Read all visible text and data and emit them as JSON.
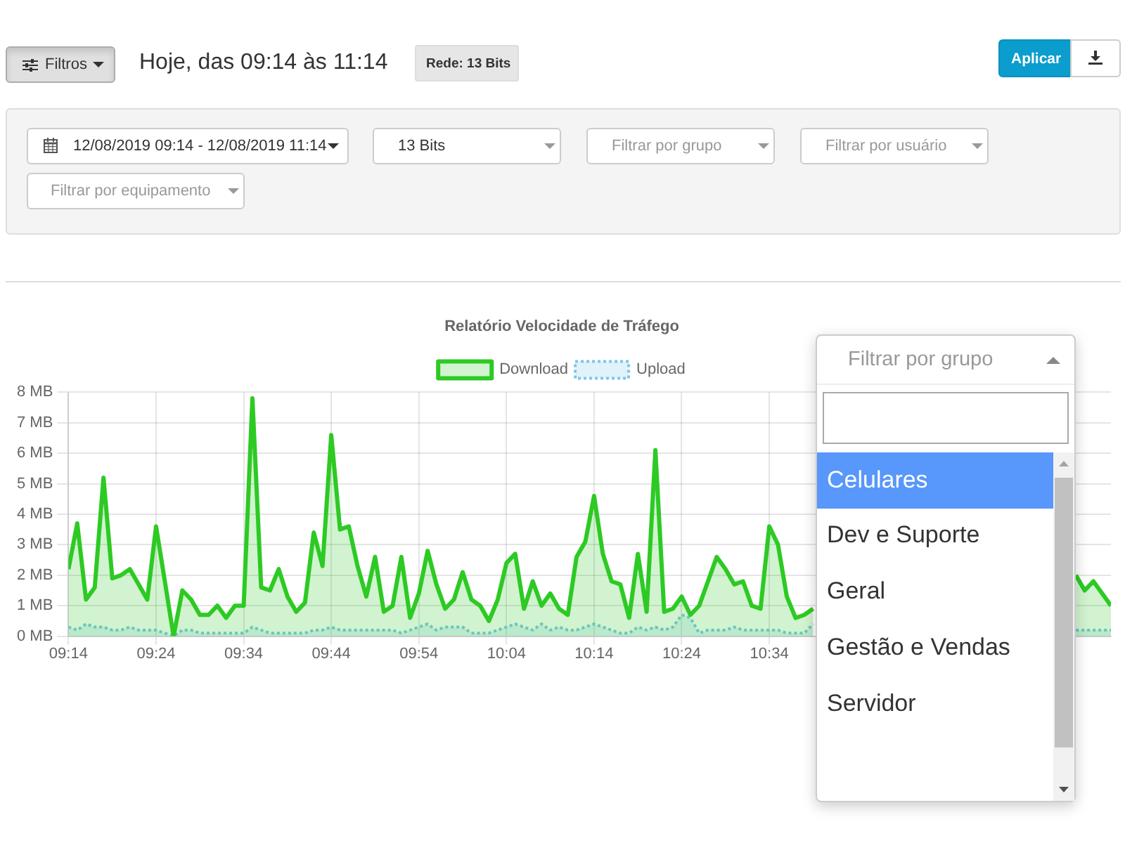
{
  "chart_data": [
    {
      "type": "other",
      "title": "Hoje, das 09:14 às 11:14",
      "annotations": [
        "Filtros",
        "Rede: 13 Bits",
        "Aplicar",
        "12/08/2019 09:14 - 12/08/2019 11:14",
        "13 Bits",
        "Filtrar por grupo",
        "Filtrar por usuário",
        "Filtrar por equipamento"
      ]
    },
    {
      "type": "area",
      "title": "Relatório Velocidade de Tráfego",
      "legend": "top",
      "grid": true,
      "x": [
        9.2333,
        9.25,
        9.2667,
        9.2833,
        9.3,
        9.3167,
        9.3333,
        9.35,
        9.3667,
        9.3833,
        9.4,
        9.4167,
        9.4333,
        9.45,
        9.4667,
        9.4833,
        9.5,
        9.5167,
        9.5333,
        9.55,
        9.5667,
        9.5833,
        9.6,
        9.6167,
        9.6333,
        9.65,
        9.6667,
        9.6833,
        9.7,
        9.7167,
        9.7333,
        9.75,
        9.7667,
        9.7833,
        9.8,
        9.8167,
        9.8333,
        9.85,
        9.8667,
        9.8833,
        9.9,
        9.9167,
        9.9333,
        9.95,
        9.9667,
        9.9833,
        10,
        10.0167,
        10.0333,
        10.05,
        10.0667,
        10.0833,
        10.1,
        10.1167,
        10.1333,
        10.15,
        10.1667,
        10.1833,
        10.2,
        10.2167,
        10.2333,
        10.25,
        10.2667,
        10.2833,
        10.3,
        10.3167,
        10.3333,
        10.35,
        10.3667,
        10.3833,
        10.4,
        10.4167,
        10.4333,
        10.45,
        10.4667,
        10.4833,
        10.5,
        10.5167,
        10.5333,
        10.55,
        10.5667,
        10.5833,
        10.6,
        10.6167,
        10.6333,
        10.65,
        10.6667,
        10.6833,
        10.7,
        10.7167,
        10.7333,
        10.75,
        10.7667,
        10.7833,
        10.8,
        10.8167,
        10.8333,
        10.85,
        10.8667,
        10.8833,
        10.9,
        10.9167,
        10.9333,
        10.95,
        10.9667,
        10.9833,
        11,
        11.0167,
        11.0333,
        11.05,
        11.0667,
        11.0833,
        11.1,
        11.1167,
        11.1333,
        11.15,
        11.1667,
        11.1833,
        11.2,
        11.2167
      ],
      "xlim": [
        9.2333,
        11.2167
      ],
      "xticks": [
        {
          "value": 9.2333,
          "label": "09:14"
        },
        {
          "value": 9.4,
          "label": "09:24"
        },
        {
          "value": 9.5667,
          "label": "09:34"
        },
        {
          "value": 9.7333,
          "label": "09:44"
        },
        {
          "value": 9.9,
          "label": "09:54"
        },
        {
          "value": 10.0667,
          "label": "10:04"
        },
        {
          "value": 10.2333,
          "label": "10:14"
        },
        {
          "value": 10.4,
          "label": "10:24"
        },
        {
          "value": 10.5667,
          "label": "10:34"
        }
      ],
      "ylim": [
        0,
        8
      ],
      "yticks": [
        {
          "value": 0,
          "label": "0 MB"
        },
        {
          "value": 1,
          "label": "1 MB"
        },
        {
          "value": 2,
          "label": "2 MB"
        },
        {
          "value": 3,
          "label": "3 MB"
        },
        {
          "value": 4,
          "label": "4 MB"
        },
        {
          "value": 5,
          "label": "5 MB"
        },
        {
          "value": 6,
          "label": "6 MB"
        },
        {
          "value": 7,
          "label": "7 MB"
        },
        {
          "value": 8,
          "label": "8 MB"
        }
      ],
      "series": [
        {
          "name": "Download",
          "color": "#2dca24",
          "values": [
            2.2,
            3.7,
            1.2,
            1.6,
            5.2,
            1.9,
            2.0,
            2.2,
            1.7,
            1.2,
            3.6,
            1.8,
            0,
            1.5,
            1.2,
            0.7,
            0.7,
            1.0,
            0.6,
            1.0,
            1.0,
            7.8,
            1.6,
            1.5,
            2.2,
            1.3,
            0.8,
            1.1,
            3.4,
            2.3,
            6.6,
            3.5,
            3.6,
            2.3,
            1.3,
            2.6,
            0.8,
            1.0,
            2.6,
            0.6,
            1.4,
            2.8,
            1.7,
            0.9,
            1.2,
            2.1,
            1.2,
            1.0,
            0.5,
            1.2,
            2.4,
            2.7,
            0.9,
            1.8,
            1.0,
            1.4,
            0.9,
            0.7,
            2.6,
            3.1,
            4.6,
            2.7,
            1.8,
            1.7,
            0.6,
            2.7,
            0.8,
            6.1,
            0.8,
            0.9,
            1.3,
            0.7,
            1.0,
            1.8,
            2.6,
            2.2,
            1.7,
            1.8,
            1.0,
            0.9,
            3.6,
            3.0,
            1.3,
            0.6,
            0.7,
            0.9,
            null,
            null,
            null,
            null,
            null,
            null,
            null,
            null,
            null,
            null,
            null,
            null,
            null,
            null,
            null,
            null,
            null,
            null,
            null,
            null,
            null,
            null,
            null,
            null,
            null,
            null,
            null,
            null,
            null,
            2.0,
            1.5,
            1.8,
            1.4,
            1.0
          ]
        },
        {
          "name": "Upload",
          "color": "#7cc6e6",
          "line_style": "dotted",
          "values": [
            0.3,
            0.2,
            0.4,
            0.3,
            0.3,
            0.2,
            0.2,
            0.3,
            0.2,
            0.2,
            0.2,
            0.1,
            0,
            0.2,
            0.2,
            0.1,
            0.1,
            0.1,
            0.1,
            0.1,
            0.1,
            0.3,
            0.2,
            0.1,
            0.1,
            0.1,
            0.1,
            0.1,
            0.2,
            0.2,
            0.3,
            0.2,
            0.2,
            0.2,
            0.2,
            0.2,
            0.2,
            0.2,
            0.1,
            0.2,
            0.3,
            0.4,
            0.2,
            0.3,
            0.3,
            0.3,
            0.1,
            0.1,
            0.1,
            0.2,
            0.3,
            0.4,
            0.3,
            0.2,
            0.4,
            0.2,
            0.3,
            0.2,
            0.2,
            0.3,
            0.4,
            0.3,
            0.2,
            0.1,
            0.1,
            0.3,
            0.2,
            0.3,
            0.2,
            0.3,
            0.7,
            0.6,
            0.1,
            0.2,
            0.2,
            0.2,
            0.3,
            0.2,
            0.2,
            0.2,
            0.2,
            0.2,
            0.1,
            0.1,
            0.1,
            0.4,
            null,
            null,
            null,
            null,
            null,
            null,
            null,
            null,
            null,
            null,
            null,
            null,
            null,
            null,
            null,
            null,
            null,
            null,
            null,
            null,
            null,
            null,
            null,
            null,
            null,
            null,
            null,
            null,
            null,
            0.2,
            0.2,
            0.2,
            0.2,
            0.2
          ]
        }
      ]
    },
    {
      "type": "other",
      "title": "Filtrar por grupo",
      "annotations": [
        "Celulares",
        "Dev e Suporte",
        "Geral",
        "Gestão e Vendas",
        "Servidor"
      ]
    }
  ]
}
